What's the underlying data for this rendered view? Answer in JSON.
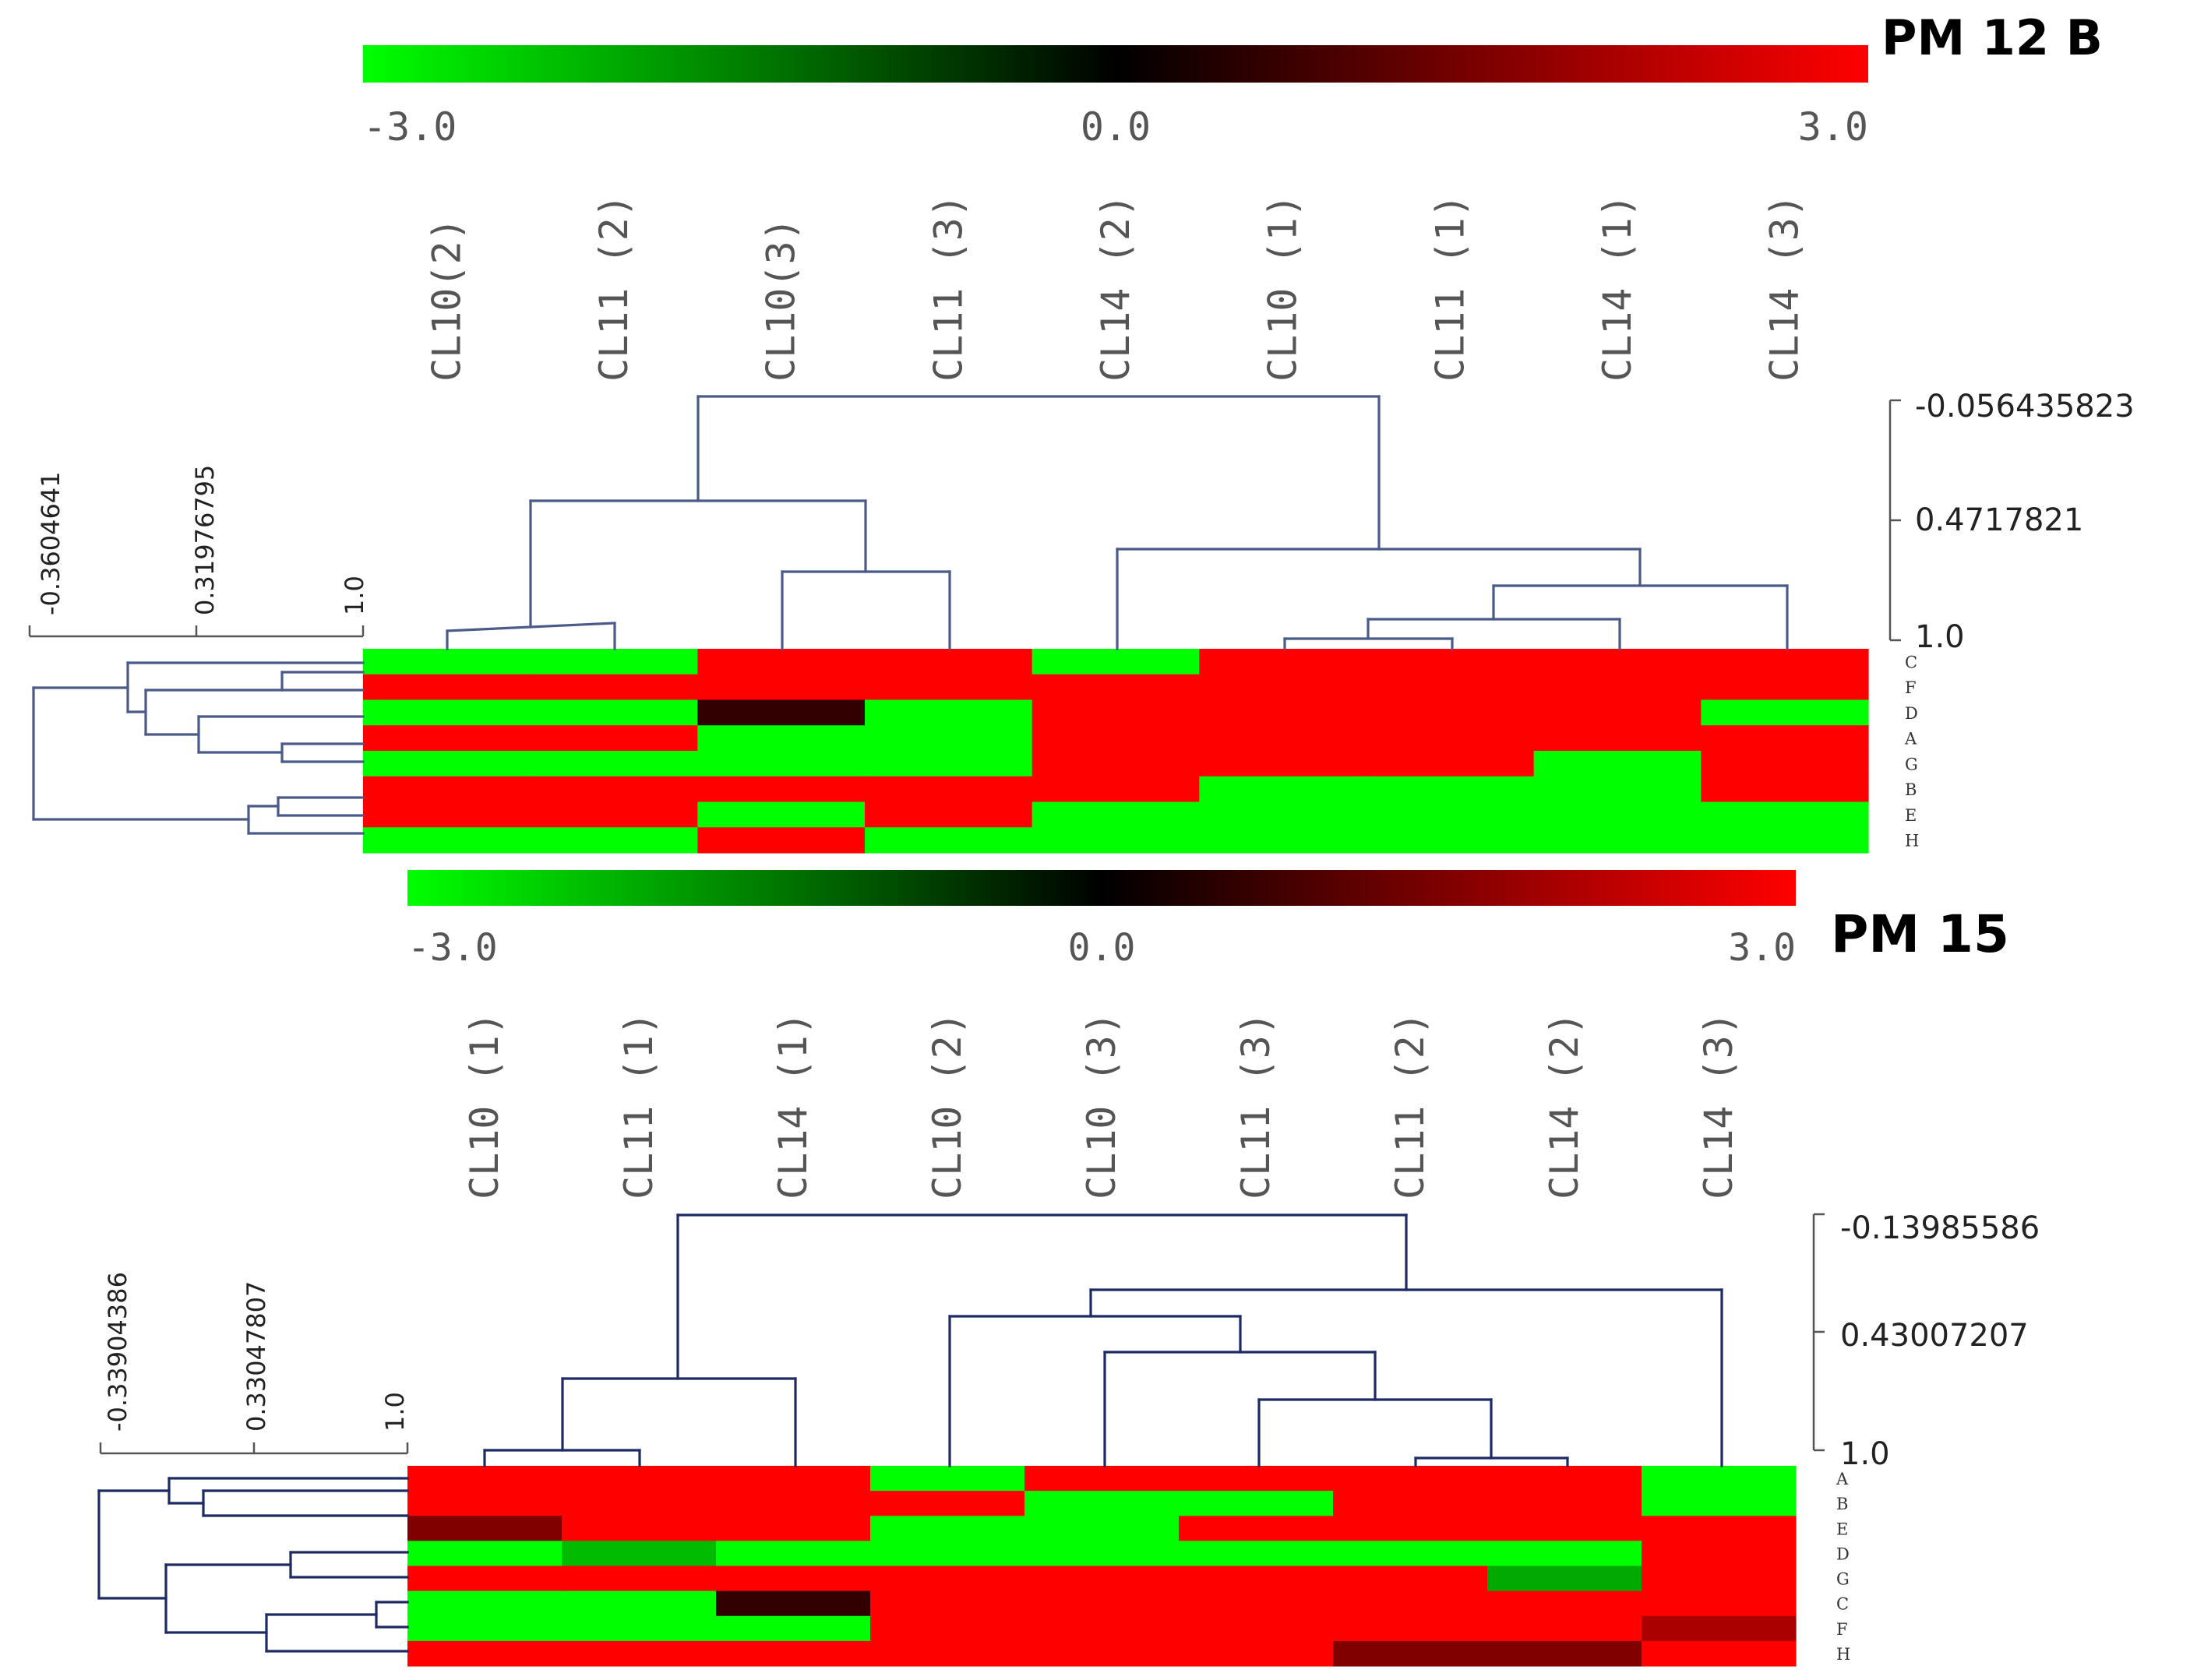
{
  "chart_data": [
    {
      "type": "heatmap",
      "title": "PM 12 B",
      "colorbar": {
        "min_label": "-3.0",
        "mid_label": "0.0",
        "max_label": "3.0",
        "min": -3.0,
        "max": 3.0,
        "low_color": "#00ff00",
        "mid_color": "#000000",
        "high_color": "#ff0000"
      },
      "columns": [
        "CL10(2)",
        "CL11 (2)",
        "CL10(3)",
        "CL11 (3)",
        "CL14 (2)",
        "CL10 (1)",
        "CL11 (1)",
        "CL14 (1)",
        "CL14 (3)"
      ],
      "rows": [
        "C",
        "F",
        "D",
        "A",
        "G",
        "B",
        "E",
        "H"
      ],
      "values": [
        [
          -3,
          -3,
          3,
          3,
          -3,
          3,
          3,
          3,
          3
        ],
        [
          3,
          3,
          3,
          3,
          3,
          3,
          3,
          3,
          3
        ],
        [
          -3,
          -3,
          0.6,
          -3,
          3,
          3,
          3,
          3,
          -3
        ],
        [
          3,
          3,
          -3,
          -3,
          3,
          3,
          3,
          3,
          3
        ],
        [
          -3,
          -3,
          -3,
          -3,
          3,
          3,
          3,
          -3,
          3
        ],
        [
          3,
          3,
          3,
          3,
          3,
          -3,
          -3,
          -3,
          3
        ],
        [
          3,
          3,
          -3,
          3,
          -3,
          -3,
          -3,
          -3,
          -3
        ],
        [
          -3,
          -3,
          3,
          -3,
          -3,
          -3,
          -3,
          -3,
          -3
        ]
      ],
      "column_tree_scale": [
        "-0.056435823",
        "0.4717821",
        "1.0"
      ],
      "row_tree_scale": [
        "-0.3604641",
        "0.31976795",
        "1.0"
      ]
    },
    {
      "type": "heatmap",
      "title": "PM 15",
      "colorbar": {
        "min_label": "-3.0",
        "mid_label": "0.0",
        "max_label": "3.0",
        "min": -3.0,
        "max": 3.0,
        "low_color": "#00ff00",
        "mid_color": "#000000",
        "high_color": "#ff0000"
      },
      "columns": [
        "CL10 (1)",
        "CL11 (1)",
        "CL14 (1)",
        "CL10 (2)",
        "CL10 (3)",
        "CL11 (3)",
        "CL11 (2)",
        "CL14 (2)",
        "CL14 (3)"
      ],
      "rows": [
        "A",
        "B",
        "E",
        "D",
        "G",
        "C",
        "F",
        "H"
      ],
      "values": [
        [
          3,
          3,
          3,
          -3,
          3,
          3,
          3,
          3,
          -3
        ],
        [
          3,
          3,
          3,
          3,
          -3,
          -3,
          3,
          3,
          -3
        ],
        [
          1.5,
          3,
          3,
          -3,
          -3,
          3,
          3,
          3,
          3
        ],
        [
          -3,
          -2.2,
          -3,
          -3,
          -3,
          -3,
          -3,
          -3,
          3
        ],
        [
          3,
          3,
          3,
          3,
          3,
          3,
          3,
          -2,
          3
        ],
        [
          -3,
          -3,
          0.6,
          3,
          3,
          3,
          3,
          3,
          3
        ],
        [
          -3,
          -3,
          -3,
          3,
          3,
          3,
          3,
          3,
          2
        ],
        [
          3,
          3,
          3,
          3,
          3,
          3,
          1.5,
          1.5,
          3
        ]
      ],
      "column_tree_scale": [
        "-0.13985586",
        "0.43007207",
        "1.0"
      ],
      "row_tree_scale": [
        "-0.33904386",
        "0.33047807",
        "1.0"
      ]
    }
  ]
}
